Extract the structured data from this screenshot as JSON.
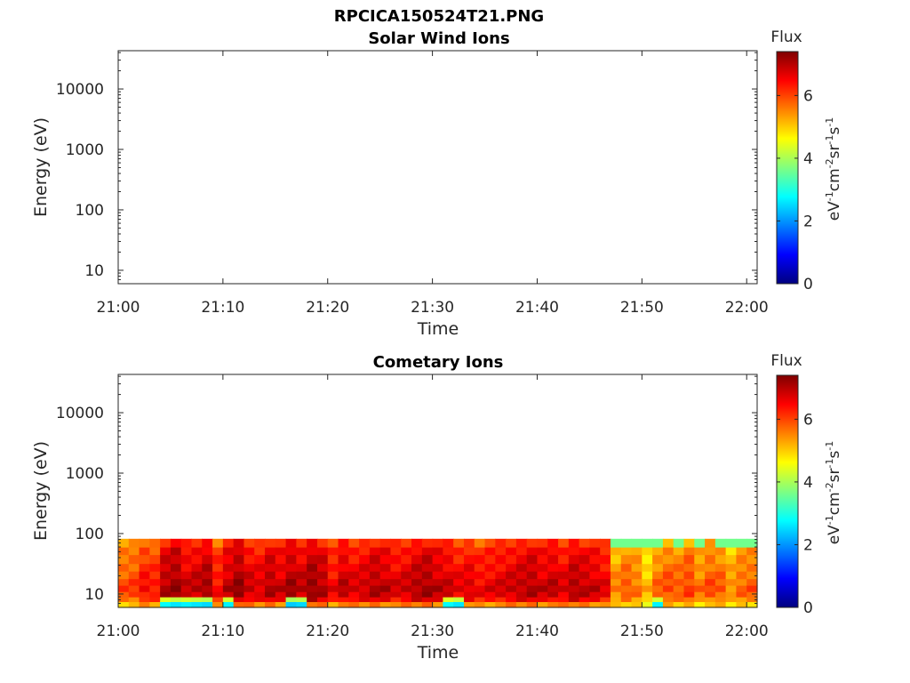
{
  "figure_title": "RPCICA150524T21.PNG",
  "chart_data": [
    {
      "type": "heatmap",
      "title": "Solar Wind Ions",
      "xlabel": "Time",
      "ylabel": "Energy (eV)",
      "x_tick_labels": [
        "21:00",
        "21:10",
        "21:20",
        "21:30",
        "21:40",
        "21:50",
        "22:00"
      ],
      "x_range": [
        "21:00",
        "22:01"
      ],
      "y_scale": "log",
      "y_tick_labels": [
        "10",
        "100",
        "1000",
        "10000"
      ],
      "y_range": [
        6,
        43000
      ],
      "colorbar": {
        "title": "Flux",
        "unit": "eV-1cm-2sr-1s-1",
        "range": [
          0,
          7.4
        ],
        "ticks": [
          "0",
          "2",
          "4",
          "6"
        ],
        "colormap": "jet"
      },
      "grid": false,
      "has_data": false
    },
    {
      "type": "heatmap",
      "title": "Cometary Ions",
      "xlabel": "Time",
      "ylabel": "Energy (eV)",
      "x_tick_labels": [
        "21:00",
        "21:10",
        "21:20",
        "21:30",
        "21:40",
        "21:50",
        "22:00"
      ],
      "x_range": [
        "21:00",
        "22:01"
      ],
      "y_scale": "log",
      "y_tick_labels": [
        "10",
        "100",
        "1000",
        "10000"
      ],
      "y_range": [
        6,
        43000
      ],
      "colorbar": {
        "title": "Flux",
        "unit": "eV-1cm-2sr-1s-1",
        "range": [
          0,
          7.4
        ],
        "ticks": [
          "0",
          "2",
          "4",
          "6"
        ],
        "colormap": "jet"
      },
      "grid": false,
      "has_data": true,
      "energy_edges": [
        6,
        7.5,
        9,
        11,
        14,
        18,
        24,
        32,
        45,
        60,
        82
      ],
      "time_bins": [
        "21:00",
        "21:01",
        "21:02",
        "21:03",
        "21:04",
        "21:05",
        "21:06",
        "21:07",
        "21:08",
        "21:09",
        "21:10",
        "21:11",
        "21:12",
        "21:13",
        "21:14",
        "21:15",
        "21:16",
        "21:17",
        "21:18",
        "21:19",
        "21:20",
        "21:21",
        "21:22",
        "21:23",
        "21:24",
        "21:25",
        "21:26",
        "21:27",
        "21:28",
        "21:29",
        "21:30",
        "21:31",
        "21:32",
        "21:33",
        "21:34",
        "21:35",
        "21:36",
        "21:37",
        "21:38",
        "21:39",
        "21:40",
        "21:41",
        "21:42",
        "21:43",
        "21:44",
        "21:45",
        "21:46",
        "21:47",
        "21:48",
        "21:49",
        "21:50",
        "21:51",
        "21:52",
        "21:53",
        "21:54",
        "21:55",
        "21:56",
        "21:57",
        "21:58",
        "21:59",
        "22:00"
      ],
      "flux_profile": [
        5.3,
        6.0,
        6.3,
        6.4,
        6.3,
        6.2,
        6.1,
        6.0,
        5.9,
        5.6
      ],
      "time_modifier": [
        -0.4,
        -0.3,
        0.1,
        0.0,
        0.7,
        0.9,
        0.5,
        0.6,
        0.8,
        0.1,
        0.6,
        0.9,
        0.5,
        0.4,
        0.7,
        0.5,
        0.8,
        0.6,
        0.9,
        0.7,
        0.2,
        0.6,
        0.4,
        0.5,
        0.7,
        0.6,
        0.4,
        0.5,
        0.7,
        0.8,
        0.6,
        0.5,
        0.3,
        0.4,
        0.2,
        0.3,
        0.4,
        0.5,
        0.6,
        0.7,
        0.5,
        0.6,
        0.4,
        0.7,
        0.6,
        0.5,
        0.3,
        -0.8,
        -0.5,
        -0.7,
        -1.2,
        -0.6,
        -0.4,
        -0.5,
        -0.3,
        -0.7,
        -0.4,
        -0.5,
        -0.9,
        -0.6,
        -0.5
      ],
      "low_energy_dip": {
        "21:04": 2.8,
        "21:05": 2.6,
        "21:06": 2.7,
        "21:07": 2.6,
        "21:08": 2.5,
        "21:10": 2.7,
        "21:16": 2.4,
        "21:17": 2.5,
        "21:31": 2.8,
        "21:32": 2.6,
        "21:51": 2.7
      }
    }
  ]
}
